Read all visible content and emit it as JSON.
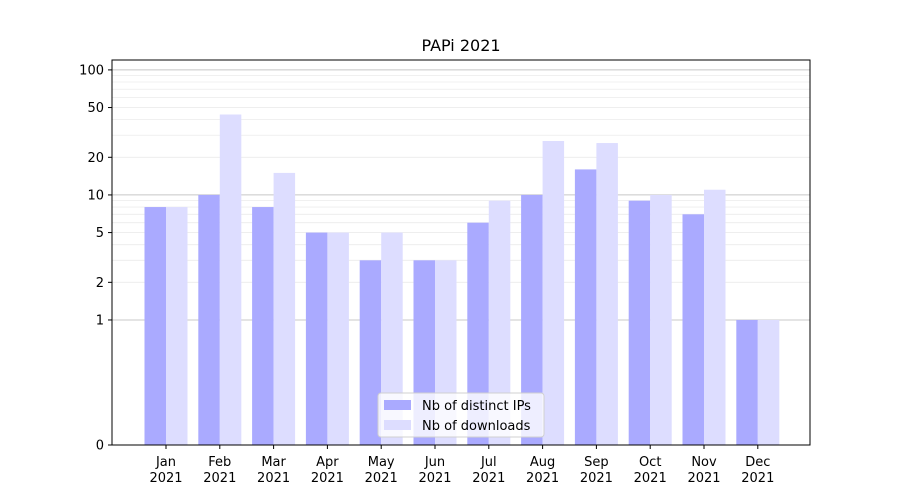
{
  "chart_data": {
    "type": "bar",
    "title": "PAPi 2021",
    "categories": [
      "Jan",
      "Feb",
      "Mar",
      "Apr",
      "May",
      "Jun",
      "Jul",
      "Aug",
      "Sep",
      "Oct",
      "Nov",
      "Dec"
    ],
    "category_sublabel": "2021",
    "series": [
      {
        "name": "Nb of distinct IPs",
        "color": "#aaaaff",
        "values": [
          8,
          10,
          8,
          5,
          3,
          3,
          6,
          10,
          16,
          9,
          7,
          1
        ]
      },
      {
        "name": "Nb of downloads",
        "color": "#ddddff",
        "values": [
          8,
          44,
          15,
          5,
          5,
          3,
          9,
          27,
          26,
          10,
          11,
          1
        ]
      }
    ],
    "y_scale": "symlog",
    "y_ticks": [
      0,
      1,
      2,
      5,
      10,
      20,
      50,
      100
    ],
    "ylim": [
      0,
      120
    ],
    "grid": true,
    "legend_position": "lower center"
  }
}
